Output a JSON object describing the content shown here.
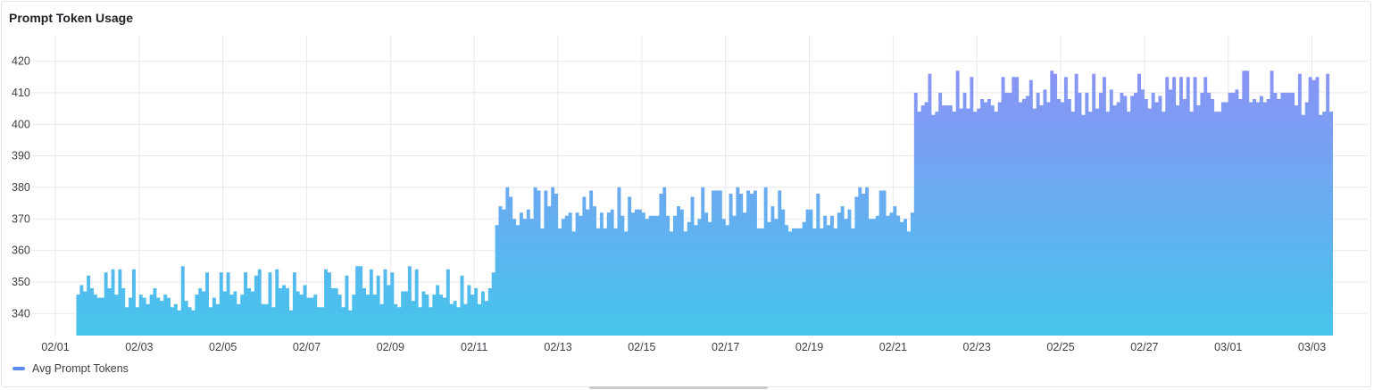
{
  "panel": {
    "title": "Prompt Token Usage"
  },
  "legend": {
    "label": "Avg Prompt Tokens",
    "color": "#5b8def"
  },
  "colors": {
    "gradient_top": "#8a93f5",
    "gradient_bottom": "#45c5ec",
    "grid": "#e6e8eb"
  },
  "chart_data": {
    "type": "area",
    "title": "Prompt Token Usage",
    "xlabel": "",
    "ylabel": "",
    "ylim": [
      333,
      423
    ],
    "yticks": [
      340,
      350,
      360,
      370,
      380,
      390,
      400,
      410,
      420
    ],
    "xticks": [
      "02/01",
      "02/03",
      "02/05",
      "02/07",
      "02/09",
      "02/11",
      "02/13",
      "02/15",
      "02/17",
      "02/19",
      "02/21",
      "02/23",
      "02/25",
      "02/27",
      "03/01",
      "03/03"
    ],
    "x_range": [
      "2025-02-01T00:00",
      "2025-03-03T12:00"
    ],
    "grid": true,
    "legend_position": "bottom-left",
    "series": [
      {
        "name": "Avg Prompt Tokens",
        "interval_hours": 2,
        "segments": [
          {
            "start": "2025-02-01T12:00",
            "end": "2025-02-11T12:00",
            "min": 341,
            "max": 355,
            "typical": 346
          },
          {
            "start": "2025-02-11T12:00",
            "end": "2025-02-21T12:00",
            "min": 366,
            "max": 380,
            "typical": 371
          },
          {
            "start": "2025-02-21T12:00",
            "end": "2025-03-03T12:00",
            "min": 403,
            "max": 417,
            "typical": 408
          }
        ]
      }
    ]
  }
}
